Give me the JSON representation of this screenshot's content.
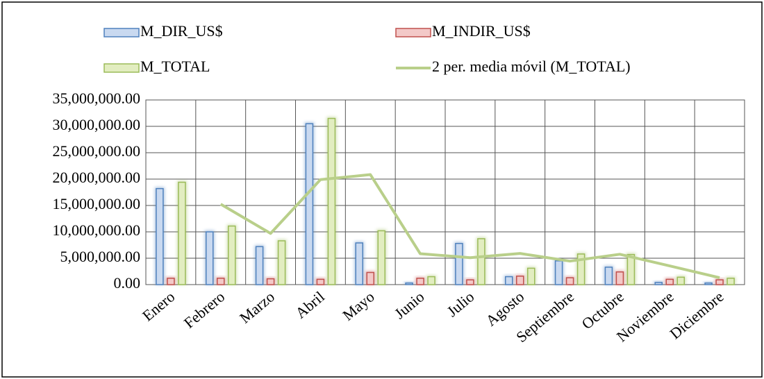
{
  "chart_data": {
    "type": "bar",
    "categories": [
      "Enero",
      "Febrero",
      "Marzo",
      "Abril",
      "Mayo",
      "Junio",
      "Julio",
      "Agosto",
      "Septiembre",
      "Octubre",
      "Noviembre",
      "Diciembre"
    ],
    "series": [
      {
        "name": "M_DIR_US$",
        "type": "bar",
        "color": "#4f81bd",
        "fill": "#c9d9f0",
        "values": [
          18200000,
          10000000,
          7200000,
          30500000,
          7900000,
          300000,
          7800000,
          1500000,
          4500000,
          3300000,
          400000,
          300000
        ]
      },
      {
        "name": "M_INDIR_US$",
        "type": "bar",
        "color": "#c0504d",
        "fill": "#f3c9c8",
        "values": [
          1200000,
          1200000,
          1100000,
          1000000,
          2300000,
          1200000,
          900000,
          1600000,
          1300000,
          2400000,
          1000000,
          900000
        ]
      },
      {
        "name": "M_TOTAL",
        "type": "bar",
        "color": "#9bbb59",
        "fill": "#e2edc0",
        "values": [
          19400000,
          11100000,
          8300000,
          31500000,
          10200000,
          1500000,
          8700000,
          3100000,
          5800000,
          5700000,
          1400000,
          1200000
        ]
      },
      {
        "name": "2 per. media móvil (M_TOTAL)",
        "type": "line",
        "color": "#b9cf8a",
        "values": [
          null,
          15250000,
          9700000,
          19900000,
          20850000,
          5850000,
          5100000,
          5900000,
          4450000,
          5750000,
          3550000,
          1300000
        ]
      }
    ],
    "ylim": [
      0,
      35000000
    ],
    "yticks": [
      {
        "value": 0,
        "label": "0.00"
      },
      {
        "value": 5000000,
        "label": "5,000,000.00"
      },
      {
        "value": 10000000,
        "label": "10,000,000.00"
      },
      {
        "value": 15000000,
        "label": "15,000,000.00"
      },
      {
        "value": 20000000,
        "label": "20,000,000.00"
      },
      {
        "value": 25000000,
        "label": "25,000,000.00"
      },
      {
        "value": 30000000,
        "label": "30,000,000.00"
      },
      {
        "value": 35000000,
        "label": "35,000,000.00"
      }
    ],
    "grid": true,
    "legend": "top"
  }
}
